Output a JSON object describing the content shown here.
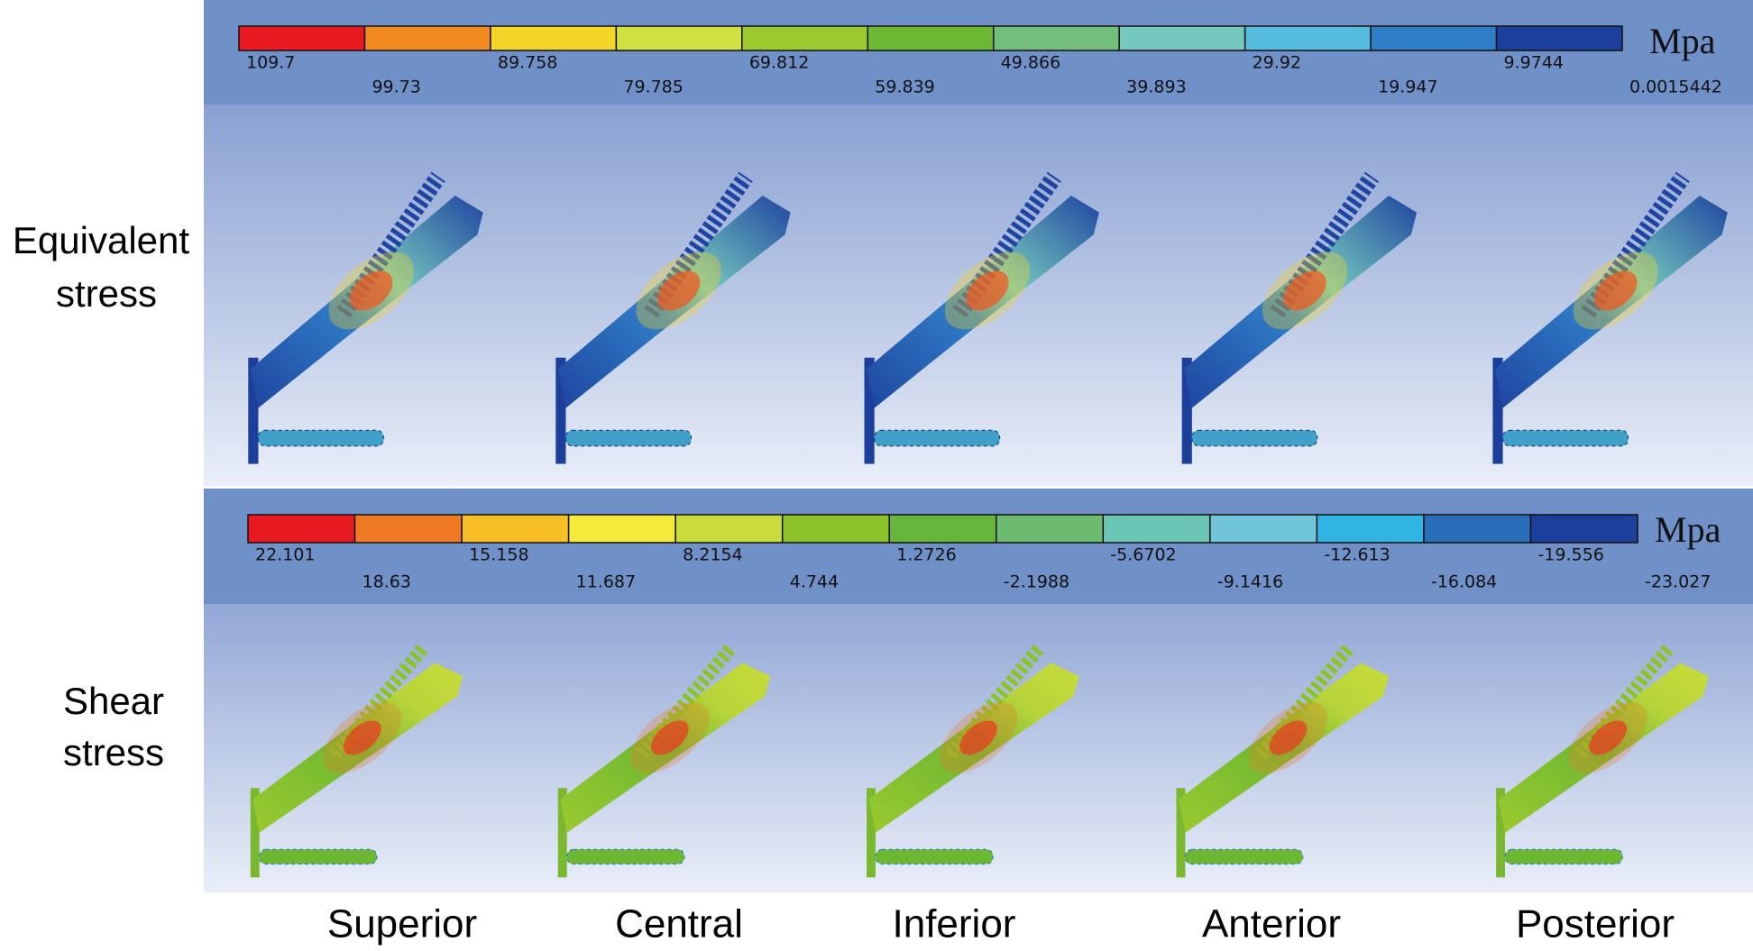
{
  "row_labels": [
    {
      "lines": [
        "Equivalent",
        "stress"
      ]
    },
    {
      "lines": [
        "Shear",
        "stress"
      ]
    }
  ],
  "legends": [
    {
      "unit": "Mpa",
      "colors": [
        "#e8191f",
        "#f28a1f",
        "#f3d527",
        "#cfe040",
        "#9cc92e",
        "#6cb833",
        "#74be7c",
        "#74c8be",
        "#55bce0",
        "#2f7fc8",
        "#1d3f9c"
      ],
      "labels": [
        "109.7",
        "99.73",
        "89.758",
        "79.785",
        "69.812",
        "59.839",
        "49.866",
        "39.893",
        "29.92",
        "19.947",
        "9.9744",
        "0.0015442"
      ]
    },
    {
      "unit": "Mpa",
      "colors": [
        "#e8191f",
        "#ef7a23",
        "#f7bf25",
        "#f4ea3a",
        "#c9dc3a",
        "#8cc32a",
        "#67b53a",
        "#6cbb70",
        "#6cc6b6",
        "#70c6d8",
        "#30b4e4",
        "#2a6db8",
        "#1d3f9c"
      ],
      "labels": [
        "22.101",
        "18.63",
        "15.158",
        "11.687",
        "8.2154",
        "4.744",
        "1.2726",
        "-2.1988",
        "-5.6702",
        "-9.1416",
        "-12.613",
        "-16.084",
        "-19.556",
        "-23.027"
      ]
    }
  ],
  "columns": [
    "Superior",
    "Central",
    "Inferior",
    "Anterior",
    "Posterior"
  ]
}
